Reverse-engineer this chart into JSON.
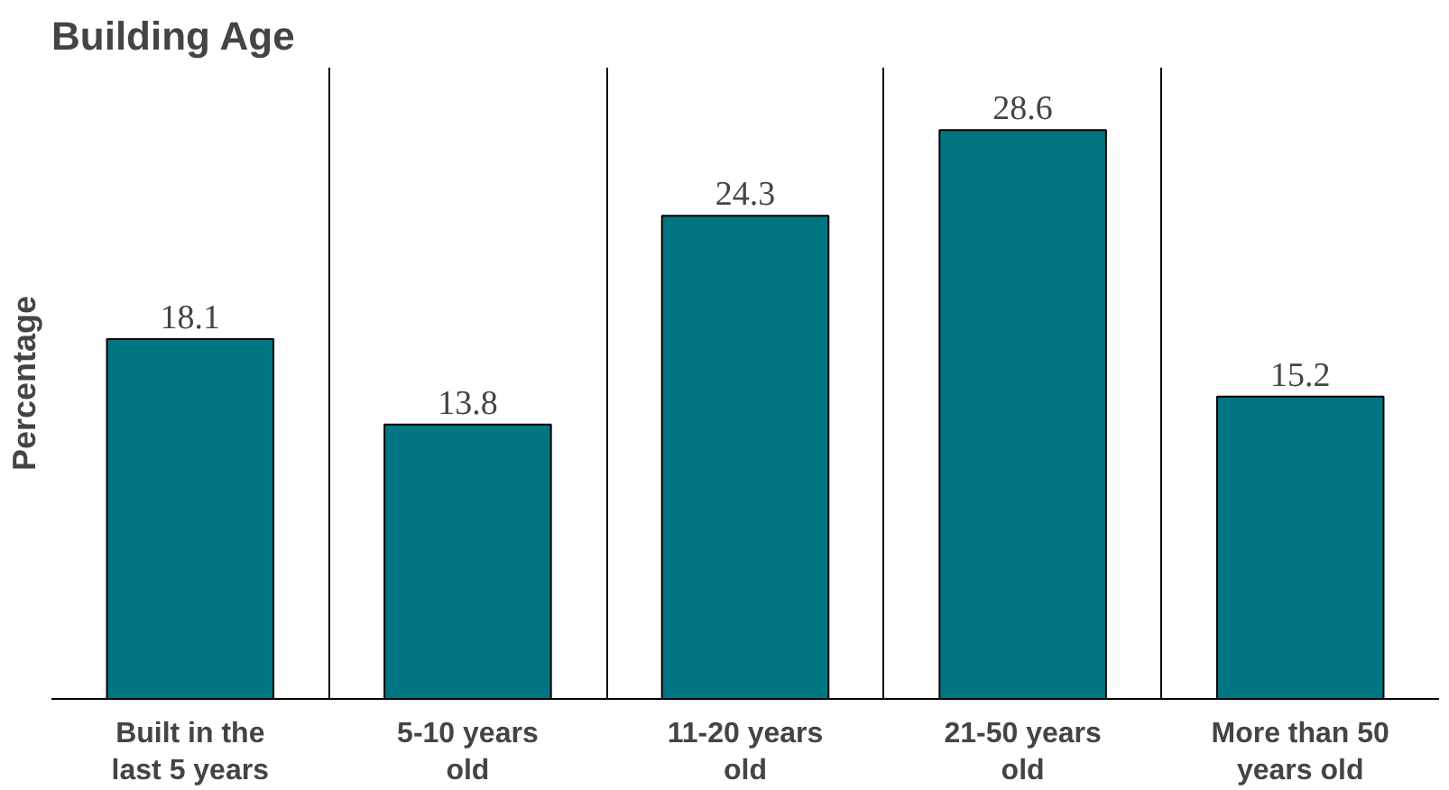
{
  "chart_data": {
    "type": "bar",
    "title": "Building Age",
    "ylabel": "Percentage",
    "categories": [
      "Built in the last 5 years",
      "5-10 years old",
      "11-20 years old",
      "21-50 years old",
      "More than 50 years old"
    ],
    "values": [
      18.1,
      13.8,
      24.3,
      28.6,
      15.2
    ],
    "color": "#007682",
    "data_labels": true,
    "grid": "x"
  }
}
